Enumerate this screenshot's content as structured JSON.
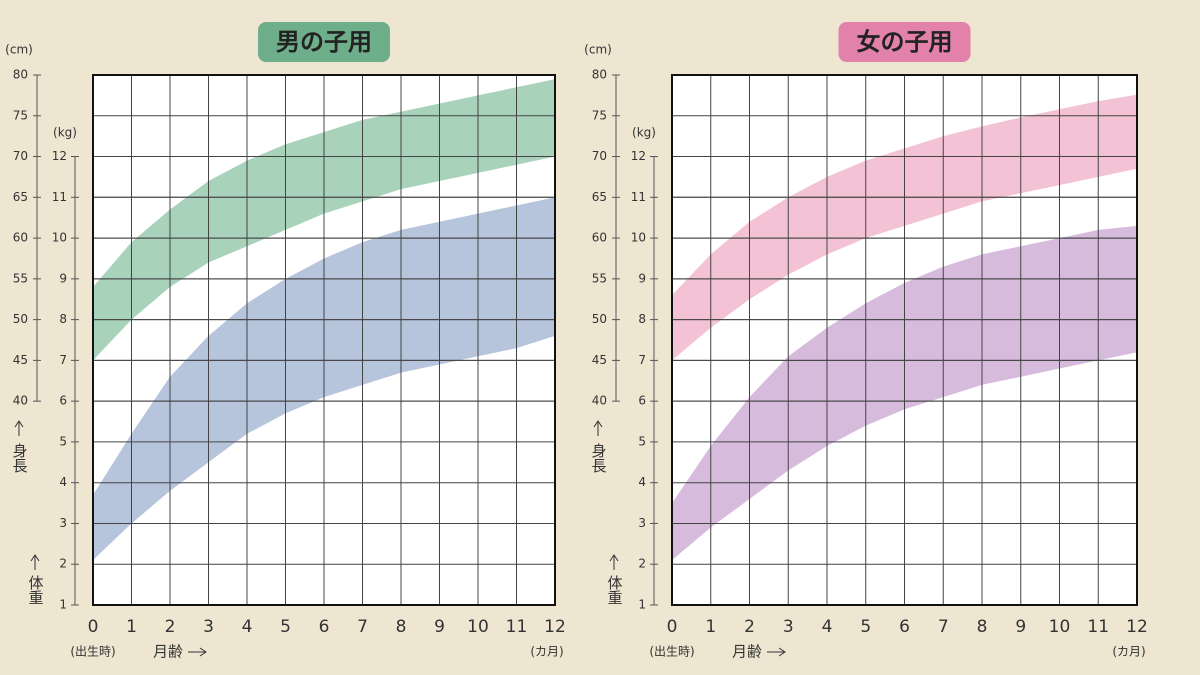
{
  "chart_data": [
    {
      "type": "band",
      "title": "男の子用",
      "title_color": "#6fae8a",
      "y2_unit": "(cm)",
      "y_unit": "(kg)",
      "y2_label": "身長",
      "y_label": "体重",
      "x_note": "(出生時)",
      "x_label": "月齢",
      "x_unit": "(カ月)",
      "xlim": [
        0,
        12
      ],
      "xticks": [
        0,
        1,
        2,
        3,
        4,
        5,
        6,
        7,
        8,
        9,
        10,
        11,
        12
      ],
      "ylim": [
        1,
        14
      ],
      "yticks": [
        1,
        2,
        3,
        4,
        5,
        6,
        7,
        8,
        9,
        10,
        11,
        12
      ],
      "y2lim": [
        15,
        80
      ],
      "y2ticks": [
        40,
        45,
        50,
        55,
        60,
        65,
        70,
        75,
        80
      ],
      "grid": true,
      "x": [
        0,
        1,
        2,
        3,
        4,
        5,
        6,
        7,
        8,
        9,
        10,
        11,
        12
      ],
      "series": [
        {
          "color": "#a9d2ba",
          "axis": "y2",
          "low": [
            45,
            50,
            54,
            57,
            59,
            61,
            63,
            64.5,
            66,
            67,
            68,
            69,
            70
          ],
          "high": [
            54,
            59.5,
            63.5,
            67,
            69.5,
            71.5,
            73,
            74.5,
            75.5,
            76.5,
            77.5,
            78.5,
            79.5
          ]
        },
        {
          "color": "#b6c5dc",
          "low": [
            2.1,
            3.0,
            3.8,
            4.5,
            5.2,
            5.7,
            6.1,
            6.4,
            6.7,
            6.9,
            7.1,
            7.3,
            7.6
          ],
          "high": [
            3.7,
            5.2,
            6.6,
            7.6,
            8.4,
            9.0,
            9.5,
            9.9,
            10.2,
            10.4,
            10.6,
            10.8,
            11.0
          ]
        }
      ]
    },
    {
      "type": "band",
      "title": "女の子用",
      "title_color": "#e282aa",
      "y2_unit": "(cm)",
      "y_unit": "(kg)",
      "y2_label": "身長",
      "y_label": "体重",
      "x_note": "(出生時)",
      "x_label": "月齢",
      "x_unit": "(カ月)",
      "xlim": [
        0,
        12
      ],
      "xticks": [
        0,
        1,
        2,
        3,
        4,
        5,
        6,
        7,
        8,
        9,
        10,
        11,
        12
      ],
      "ylim": [
        1,
        14
      ],
      "yticks": [
        1,
        2,
        3,
        4,
        5,
        6,
        7,
        8,
        9,
        10,
        11,
        12
      ],
      "y2lim": [
        15,
        80
      ],
      "y2ticks": [
        40,
        45,
        50,
        55,
        60,
        65,
        70,
        75,
        80
      ],
      "grid": true,
      "x": [
        0,
        1,
        2,
        3,
        4,
        5,
        6,
        7,
        8,
        9,
        10,
        11,
        12
      ],
      "series": [
        {
          "color": "#f3c3d5",
          "axis": "y2",
          "low": [
            45,
            49,
            52.5,
            55.5,
            58,
            60,
            61.5,
            63,
            64.5,
            65.5,
            66.5,
            67.5,
            68.5
          ],
          "high": [
            53,
            58,
            62,
            65,
            67.5,
            69.5,
            71,
            72.5,
            73.7,
            74.8,
            75.8,
            76.8,
            77.6
          ]
        },
        {
          "color": "#d6bbdd",
          "low": [
            2.1,
            2.9,
            3.6,
            4.3,
            4.9,
            5.4,
            5.8,
            6.1,
            6.4,
            6.6,
            6.8,
            7.0,
            7.2
          ],
          "high": [
            3.5,
            4.9,
            6.1,
            7.1,
            7.8,
            8.4,
            8.9,
            9.3,
            9.6,
            9.8,
            10.0,
            10.2,
            10.3
          ]
        }
      ]
    }
  ]
}
